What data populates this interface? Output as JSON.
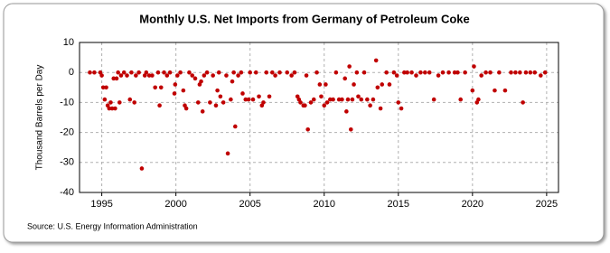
{
  "chart_data": {
    "type": "scatter",
    "title": "Monthly U.S. Net Imports from Germany of Petroleum Coke",
    "y_label": "Thousand Barrels per Day",
    "source": "Source: U.S. Energy Information Administration",
    "color": "#c00000",
    "grid": true,
    "xlim": [
      1993.5,
      2025.8
    ],
    "ylim": [
      -40,
      10
    ],
    "xticks": [
      1995,
      2000,
      2005,
      2010,
      2015,
      2020,
      2025
    ],
    "yticks": [
      -40,
      -30,
      -20,
      -10,
      0,
      10
    ],
    "series": [
      {
        "name": "Net Imports",
        "x": [
          1994.2,
          1994.5,
          1994.9,
          1995.0,
          1995.1,
          1995.2,
          1995.3,
          1995.4,
          1995.5,
          1995.6,
          1995.7,
          1995.8,
          1995.9,
          1996.0,
          1996.1,
          1996.2,
          1996.3,
          1996.5,
          1996.7,
          1996.9,
          1997.0,
          1997.2,
          1997.3,
          1997.5,
          1997.7,
          1997.9,
          1998.0,
          1998.2,
          1998.4,
          1998.6,
          1998.8,
          1998.9,
          1999.0,
          1999.2,
          1999.4,
          1999.6,
          1999.9,
          1999.95,
          2000.1,
          2000.3,
          2000.5,
          2000.6,
          2000.7,
          2000.9,
          2001.1,
          2001.3,
          2001.5,
          2001.6,
          2001.7,
          2001.8,
          2001.9,
          2002.1,
          2002.3,
          2002.5,
          2002.7,
          2002.8,
          2002.9,
          2003.0,
          2003.2,
          2003.4,
          2003.5,
          2003.7,
          2003.8,
          2003.9,
          2004.0,
          2004.2,
          2004.4,
          2004.5,
          2004.7,
          2004.9,
          2005.0,
          2005.2,
          2005.4,
          2005.6,
          2005.8,
          2005.9,
          2006.1,
          2006.3,
          2006.5,
          2006.7,
          2007.0,
          2007.5,
          2007.8,
          2008.0,
          2008.2,
          2008.3,
          2008.4,
          2008.6,
          2008.7,
          2008.8,
          2008.9,
          2009.1,
          2009.3,
          2009.5,
          2009.7,
          2009.8,
          2010.0,
          2010.1,
          2010.2,
          2010.4,
          2010.6,
          2010.8,
          2011.0,
          2011.2,
          2011.4,
          2011.5,
          2011.6,
          2011.7,
          2011.8,
          2011.9,
          2012.0,
          2012.2,
          2012.3,
          2012.5,
          2012.7,
          2012.9,
          2013.1,
          2013.3,
          2013.5,
          2013.6,
          2013.8,
          2013.9,
          2014.2,
          2014.4,
          2014.7,
          2014.9,
          2015.0,
          2015.2,
          2015.4,
          2015.6,
          2015.9,
          2016.2,
          2016.5,
          2016.8,
          2017.1,
          2017.4,
          2017.7,
          2018.0,
          2018.4,
          2018.8,
          2019.0,
          2019.2,
          2019.5,
          2020.0,
          2020.1,
          2020.3,
          2020.4,
          2020.6,
          2020.9,
          2021.2,
          2021.5,
          2021.8,
          2022.2,
          2022.6,
          2022.9,
          2023.2,
          2023.4,
          2023.6,
          2023.9,
          2024.2,
          2024.6,
          2024.9
        ],
        "values": [
          0,
          0,
          0,
          -1,
          -5,
          -9,
          -5,
          -11,
          -12,
          -10,
          -12,
          -2,
          -12,
          -2,
          0,
          -10,
          -1,
          0,
          -1,
          -9,
          0,
          -10,
          -1,
          0,
          -32,
          -1,
          0,
          -1,
          -1,
          -5,
          0,
          -11,
          -5,
          0,
          -1,
          0,
          -7,
          -4,
          -1,
          0,
          -6,
          -11,
          -12,
          0,
          -1,
          -2,
          -10,
          -4,
          -3,
          -13,
          -1,
          0,
          -10,
          -1,
          -11,
          -6,
          0,
          -8,
          -10,
          -1,
          -27,
          -9,
          -3,
          0,
          -18,
          -1,
          0,
          -7,
          -9,
          -9,
          0,
          -9,
          0,
          -8,
          -11,
          -10,
          0,
          -8,
          0,
          -1,
          0,
          0,
          -1,
          0,
          -8,
          -9,
          -10,
          -11,
          -11,
          -1,
          -19,
          -10,
          -9,
          0,
          -4,
          -8,
          -11,
          -4,
          -10,
          -9,
          -9,
          0,
          -9,
          -9,
          -2,
          -13,
          -9,
          2,
          -19,
          -9,
          -4,
          0,
          -8,
          -9,
          0,
          -9,
          -11,
          -9,
          4,
          -5,
          -12,
          -4,
          0,
          -4,
          0,
          -1,
          -10,
          -12,
          0,
          0,
          0,
          -1,
          0,
          0,
          0,
          -9,
          -1,
          0,
          0,
          0,
          0,
          -9,
          0,
          -6,
          2,
          -10,
          -9,
          -1,
          0,
          0,
          -6,
          0,
          -6,
          0,
          0,
          0,
          -10,
          0,
          0,
          0,
          -1,
          0
        ]
      }
    ]
  }
}
